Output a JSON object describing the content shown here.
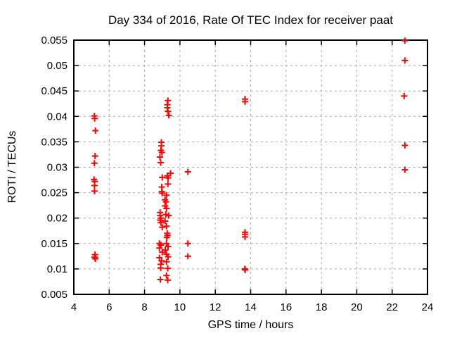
{
  "window": {
    "background": "#ffffff"
  },
  "colors": {
    "marker": "#ff0000",
    "border": "#000000",
    "grid": "#a8a8a8",
    "text": "#000000"
  },
  "chart_data": {
    "type": "scatter",
    "title": "Day 334 of 2016, Rate Of TEC Index for receiver paat",
    "xlabel": "GPS time / hours",
    "ylabel": "ROTI / TECUs",
    "xlim": [
      4,
      24
    ],
    "ylim": [
      0.005,
      0.055
    ],
    "x_ticks": [
      4,
      6,
      8,
      10,
      12,
      14,
      16,
      18,
      20,
      22,
      24
    ],
    "x_tick_labels": [
      "4",
      "6",
      "8",
      "10",
      "12",
      "14",
      "16",
      "18",
      "20",
      "22",
      "24"
    ],
    "y_ticks": [
      0.005,
      0.01,
      0.015,
      0.02,
      0.025,
      0.03,
      0.035,
      0.04,
      0.045,
      0.05,
      0.055
    ],
    "y_tick_labels": [
      "0.005",
      "0.01",
      "0.015",
      "0.02",
      "0.025",
      "0.03",
      "0.035",
      "0.04",
      "0.045",
      "0.05",
      "0.055"
    ],
    "grid": true,
    "legend_position": "none",
    "marker": {
      "shape": "plus",
      "color": "#ff0000"
    },
    "series": [
      {
        "name": "ROTI",
        "points": [
          [
            5.16,
            0.0401
          ],
          [
            5.18,
            0.0396
          ],
          [
            5.22,
            0.0372
          ],
          [
            5.2,
            0.0322
          ],
          [
            5.16,
            0.0308
          ],
          [
            5.14,
            0.0276
          ],
          [
            5.18,
            0.0272
          ],
          [
            5.17,
            0.0264
          ],
          [
            5.17,
            0.0253
          ],
          [
            5.2,
            0.0128
          ],
          [
            5.17,
            0.0123
          ],
          [
            5.22,
            0.012
          ],
          [
            9.32,
            0.0431
          ],
          [
            9.29,
            0.0423
          ],
          [
            9.29,
            0.0417
          ],
          [
            9.32,
            0.041
          ],
          [
            9.37,
            0.0402
          ],
          [
            8.95,
            0.0349
          ],
          [
            8.95,
            0.0342
          ],
          [
            8.92,
            0.0333
          ],
          [
            8.98,
            0.0329
          ],
          [
            8.87,
            0.032
          ],
          [
            8.91,
            0.0309
          ],
          [
            9.47,
            0.0288
          ],
          [
            9.28,
            0.0283
          ],
          [
            9.33,
            0.0279
          ],
          [
            9.0,
            0.028
          ],
          [
            9.32,
            0.0267
          ],
          [
            8.97,
            0.0261
          ],
          [
            8.98,
            0.0252
          ],
          [
            9.0,
            0.0249
          ],
          [
            9.24,
            0.0245
          ],
          [
            9.15,
            0.0236
          ],
          [
            9.21,
            0.0232
          ],
          [
            9.16,
            0.0224
          ],
          [
            9.24,
            0.0219
          ],
          [
            8.88,
            0.0211
          ],
          [
            9.2,
            0.0207
          ],
          [
            8.88,
            0.0205
          ],
          [
            9.36,
            0.0205
          ],
          [
            8.92,
            0.02
          ],
          [
            8.88,
            0.0196
          ],
          [
            9.16,
            0.0194
          ],
          [
            8.92,
            0.0191
          ],
          [
            9.24,
            0.0184
          ],
          [
            9.0,
            0.0182
          ],
          [
            9.28,
            0.017
          ],
          [
            9.3,
            0.0166
          ],
          [
            9.26,
            0.0162
          ],
          [
            8.84,
            0.015
          ],
          [
            9.24,
            0.015
          ],
          [
            8.92,
            0.0147
          ],
          [
            9.33,
            0.0144
          ],
          [
            8.84,
            0.0141
          ],
          [
            9.17,
            0.0137
          ],
          [
            9.0,
            0.0133
          ],
          [
            9.24,
            0.0129
          ],
          [
            9.33,
            0.0124
          ],
          [
            8.84,
            0.0122
          ],
          [
            8.96,
            0.0116
          ],
          [
            9.24,
            0.0114
          ],
          [
            8.91,
            0.0109
          ],
          [
            8.91,
            0.0102
          ],
          [
            9.31,
            0.0101
          ],
          [
            9.24,
            0.0087
          ],
          [
            8.89,
            0.0079
          ],
          [
            9.31,
            0.0078
          ],
          [
            10.45,
            0.0291
          ],
          [
            10.45,
            0.015
          ],
          [
            10.45,
            0.0125
          ],
          [
            13.68,
            0.0434
          ],
          [
            13.68,
            0.0429
          ],
          [
            13.68,
            0.0172
          ],
          [
            13.68,
            0.0168
          ],
          [
            13.68,
            0.0163
          ],
          [
            13.67,
            0.01
          ],
          [
            13.69,
            0.0098
          ],
          [
            22.72,
            0.0549
          ],
          [
            22.72,
            0.051
          ],
          [
            22.68,
            0.044
          ],
          [
            22.72,
            0.0343
          ],
          [
            22.72,
            0.0295
          ]
        ]
      }
    ]
  }
}
